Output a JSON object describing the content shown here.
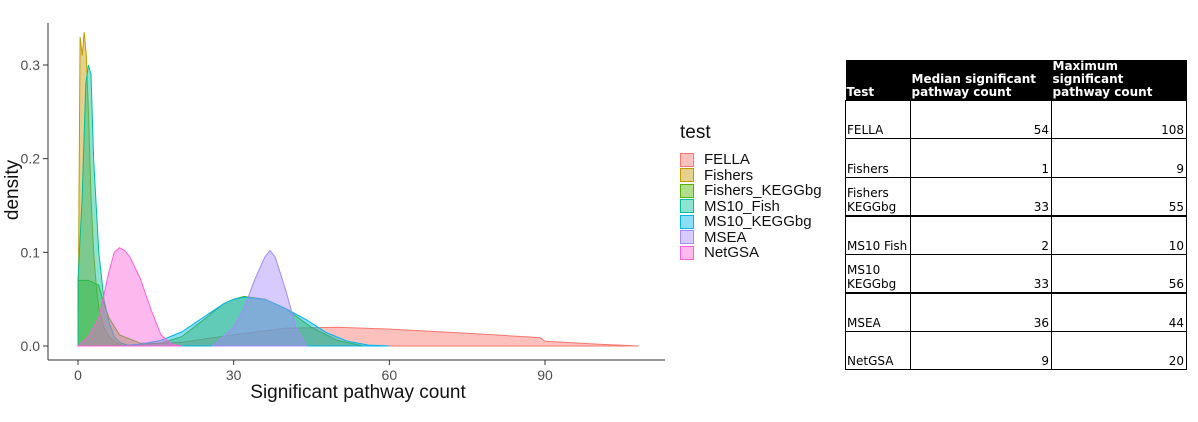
{
  "chart_data": {
    "type": "area",
    "subtype": "density",
    "xlabel": "Significant pathway count",
    "ylabel": "density",
    "xlim": [
      -5,
      110
    ],
    "ylim": [
      0,
      0.34
    ],
    "xticks": [
      0,
      30,
      60,
      90
    ],
    "xtick_labels": [
      "0",
      "30",
      "60",
      "90"
    ],
    "yticks": [
      0.0,
      0.1,
      0.2,
      0.3
    ],
    "ytick_labels": [
      "0.0",
      "0.1",
      "0.2",
      "0.3"
    ],
    "grid": false,
    "legend_title": "test",
    "legend_placement": "right",
    "series": [
      {
        "name": "FELLA",
        "color": "#F8766D",
        "x": [
          0,
          10,
          20,
          30,
          40,
          50,
          60,
          70,
          80,
          89,
          90,
          100,
          108
        ],
        "y": [
          0.0,
          0.001,
          0.004,
          0.012,
          0.019,
          0.02,
          0.018,
          0.015,
          0.012,
          0.009,
          0.005,
          0.002,
          0.0
        ]
      },
      {
        "name": "Fishers",
        "color": "#C49A00",
        "x": [
          0,
          0.4,
          0.8,
          1.2,
          1.6,
          2,
          2.5,
          3,
          3.5,
          4,
          5,
          6,
          7,
          8,
          9
        ],
        "y": [
          0.0,
          0.33,
          0.31,
          0.335,
          0.31,
          0.25,
          0.16,
          0.1,
          0.065,
          0.04,
          0.02,
          0.01,
          0.005,
          0.002,
          0.0
        ]
      },
      {
        "name": "Fishers_KEGGbg",
        "color": "#53B400",
        "x": [
          0,
          2,
          4,
          5,
          6,
          8,
          12,
          16,
          20,
          24,
          28,
          30,
          32,
          36,
          40,
          45,
          50,
          55
        ],
        "y": [
          0.07,
          0.07,
          0.065,
          0.045,
          0.03,
          0.012,
          0.003,
          0.003,
          0.01,
          0.027,
          0.045,
          0.05,
          0.053,
          0.05,
          0.04,
          0.02,
          0.006,
          0.0
        ]
      },
      {
        "name": "MS10_Fish",
        "color": "#00C094",
        "x": [
          0,
          0.8,
          1.5,
          2,
          2.5,
          3,
          4,
          5,
          6,
          7,
          8,
          10
        ],
        "y": [
          0.07,
          0.16,
          0.28,
          0.3,
          0.29,
          0.2,
          0.1,
          0.05,
          0.025,
          0.01,
          0.004,
          0.0
        ]
      },
      {
        "name": "MS10_KEGGbg",
        "color": "#00B6EB",
        "x": [
          0,
          8,
          12,
          16,
          20,
          24,
          28,
          30,
          32,
          36,
          40,
          44,
          48,
          52,
          56,
          60
        ],
        "y": [
          0.0,
          0.0,
          0.002,
          0.006,
          0.015,
          0.03,
          0.045,
          0.05,
          0.052,
          0.05,
          0.04,
          0.028,
          0.014,
          0.005,
          0.001,
          0.0
        ]
      },
      {
        "name": "MSEA",
        "color": "#A58AFF",
        "x": [
          26,
          30,
          32,
          34,
          36,
          37,
          38,
          40,
          42,
          44
        ],
        "y": [
          0.0,
          0.02,
          0.04,
          0.07,
          0.095,
          0.102,
          0.095,
          0.06,
          0.02,
          0.0
        ]
      },
      {
        "name": "NetGSA",
        "color": "#FB61D7",
        "x": [
          0,
          2,
          4,
          6,
          7,
          8,
          9,
          10,
          12,
          14,
          16,
          18,
          20
        ],
        "y": [
          0.0,
          0.01,
          0.03,
          0.08,
          0.1,
          0.105,
          0.102,
          0.095,
          0.072,
          0.04,
          0.012,
          0.002,
          0.0
        ]
      }
    ]
  },
  "table": {
    "headers": [
      "Test",
      "Median significant pathway count",
      "Maximum significant pathway count"
    ],
    "rows": [
      {
        "test": "FELLA",
        "median": "54",
        "max": "108"
      },
      {
        "test": "Fishers",
        "median": "1",
        "max": "9"
      },
      {
        "test": "Fishers KEGGbg",
        "median": "33",
        "max": "55"
      },
      {
        "test": "MS10 Fish",
        "median": "2",
        "max": "10"
      },
      {
        "test": "MS10 KEGGbg",
        "median": "33",
        "max": "56"
      },
      {
        "test": "MSEA",
        "median": "36",
        "max": "44"
      },
      {
        "test": "NetGSA",
        "median": "9",
        "max": "20"
      }
    ]
  }
}
